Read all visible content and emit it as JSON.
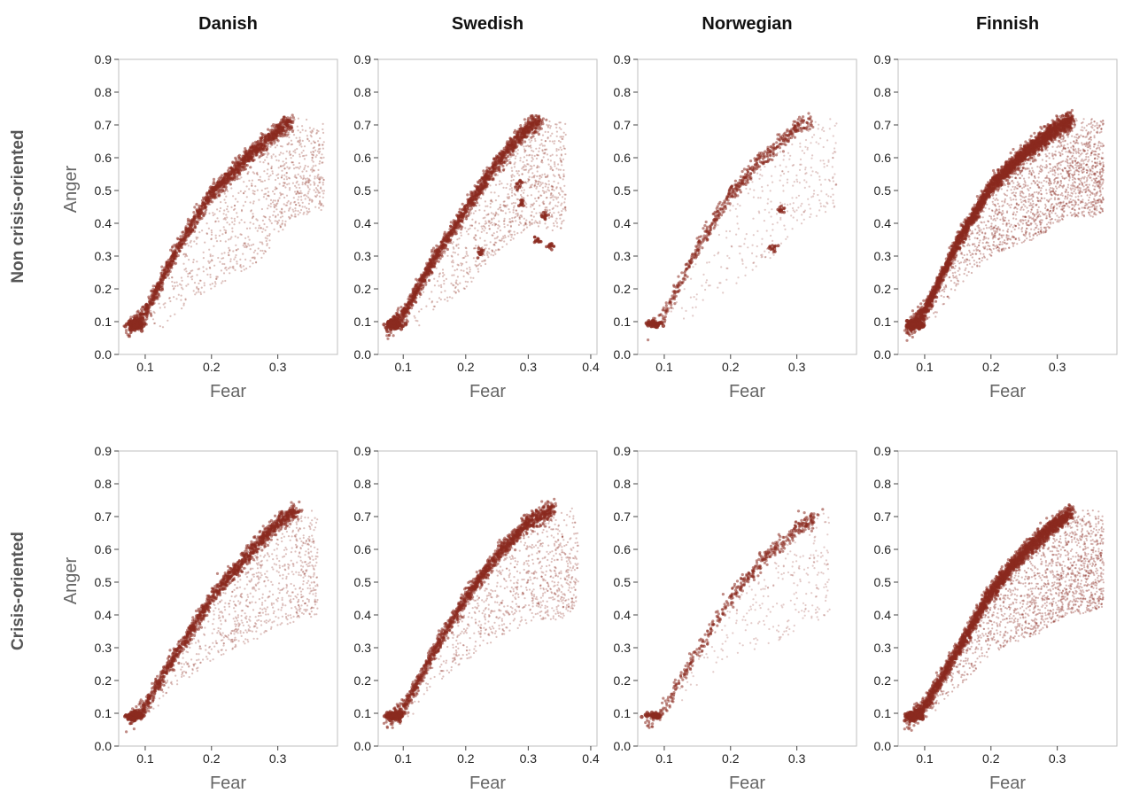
{
  "chart_data": {
    "type": "scatter",
    "columns": [
      "Danish",
      "Swedish",
      "Norwegian",
      "Finnish"
    ],
    "rows": [
      "Non crisis-oriented",
      "Crisis-oriented"
    ],
    "xlabel": "Fear",
    "ylabel": "Anger",
    "ylim": [
      0,
      0.9
    ],
    "yticks": [
      0.0,
      0.1,
      0.2,
      0.3,
      0.4,
      0.5,
      0.6,
      0.7,
      0.8,
      0.9
    ],
    "ytick_labels": [
      "0.0",
      "0.1",
      "0.2",
      "0.3",
      "0.4",
      "0.5",
      "0.6",
      "0.7",
      "0.8",
      "0.9"
    ],
    "color": "#8b2a1f",
    "panels": [
      {
        "row": 0,
        "col": 0,
        "language": "Danish",
        "row_label": "Non crisis-oriented",
        "xlim": [
          0.06,
          0.39
        ],
        "xticks": [
          0.1,
          0.2,
          0.3
        ],
        "xtick_labels": [
          "0.1",
          "0.2",
          "0.3"
        ],
        "show_ylabel": true,
        "density": 1.0,
        "ridge": [
          [
            0.075,
            0.085
          ],
          [
            0.1,
            0.135
          ],
          [
            0.15,
            0.335
          ],
          [
            0.2,
            0.5
          ],
          [
            0.25,
            0.6
          ],
          [
            0.3,
            0.69
          ],
          [
            0.32,
            0.72
          ]
        ],
        "spread_max": [
          [
            0.13,
            0.17
          ],
          [
            0.2,
            0.3
          ],
          [
            0.27,
            0.36
          ],
          [
            0.33,
            0.3
          ],
          [
            0.37,
            0.28
          ]
        ],
        "clusters": []
      },
      {
        "row": 0,
        "col": 1,
        "language": "Swedish",
        "row_label": "Non crisis-oriented",
        "xlim": [
          0.06,
          0.41
        ],
        "xticks": [
          0.1,
          0.2,
          0.3,
          0.4
        ],
        "xtick_labels": [
          "0.1",
          "0.2",
          "0.3",
          "0.4"
        ],
        "show_ylabel": false,
        "density": 1.0,
        "ridge": [
          [
            0.075,
            0.085
          ],
          [
            0.1,
            0.13
          ],
          [
            0.15,
            0.3
          ],
          [
            0.2,
            0.45
          ],
          [
            0.25,
            0.59
          ],
          [
            0.3,
            0.7
          ],
          [
            0.32,
            0.72
          ]
        ],
        "spread_max": [
          [
            0.13,
            0.15
          ],
          [
            0.2,
            0.25
          ],
          [
            0.28,
            0.3
          ],
          [
            0.35,
            0.35
          ],
          [
            0.36,
            0.3
          ]
        ],
        "clusters": [
          [
            0.285,
            0.52
          ],
          [
            0.325,
            0.42
          ],
          [
            0.335,
            0.33
          ],
          [
            0.315,
            0.35
          ],
          [
            0.225,
            0.31
          ],
          [
            0.29,
            0.46
          ]
        ]
      },
      {
        "row": 0,
        "col": 2,
        "language": "Norwegian",
        "row_label": "Non crisis-oriented",
        "xlim": [
          0.06,
          0.39
        ],
        "xticks": [
          0.1,
          0.2,
          0.3
        ],
        "xtick_labels": [
          "0.1",
          "0.2",
          "0.3"
        ],
        "show_ylabel": false,
        "density": 0.35,
        "ridge": [
          [
            0.075,
            0.085
          ],
          [
            0.1,
            0.13
          ],
          [
            0.15,
            0.33
          ],
          [
            0.2,
            0.5
          ],
          [
            0.25,
            0.61
          ],
          [
            0.3,
            0.7
          ],
          [
            0.32,
            0.72
          ]
        ],
        "spread_max": [
          [
            0.13,
            0.16
          ],
          [
            0.2,
            0.3
          ],
          [
            0.27,
            0.34
          ],
          [
            0.33,
            0.3
          ],
          [
            0.36,
            0.29
          ]
        ],
        "clusters": [
          [
            0.265,
            0.325
          ],
          [
            0.275,
            0.44
          ]
        ]
      },
      {
        "row": 0,
        "col": 3,
        "language": "Finnish",
        "row_label": "Non crisis-oriented",
        "xlim": [
          0.06,
          0.39
        ],
        "xticks": [
          0.1,
          0.2,
          0.3
        ],
        "xtick_labels": [
          "0.1",
          "0.2",
          "0.3"
        ],
        "show_ylabel": false,
        "density": 1.9,
        "ridge": [
          [
            0.075,
            0.085
          ],
          [
            0.1,
            0.14
          ],
          [
            0.15,
            0.35
          ],
          [
            0.2,
            0.52
          ],
          [
            0.25,
            0.62
          ],
          [
            0.3,
            0.7
          ],
          [
            0.32,
            0.72
          ]
        ],
        "spread_max": [
          [
            0.12,
            0.1
          ],
          [
            0.2,
            0.22
          ],
          [
            0.27,
            0.3
          ],
          [
            0.33,
            0.3
          ],
          [
            0.37,
            0.3
          ]
        ],
        "clusters": []
      },
      {
        "row": 1,
        "col": 0,
        "language": "Danish",
        "row_label": "Crisis-oriented",
        "xlim": [
          0.06,
          0.39
        ],
        "xticks": [
          0.1,
          0.2,
          0.3
        ],
        "xtick_labels": [
          "0.1",
          "0.2",
          "0.3"
        ],
        "show_ylabel": true,
        "density": 0.9,
        "ridge": [
          [
            0.075,
            0.085
          ],
          [
            0.1,
            0.13
          ],
          [
            0.15,
            0.3
          ],
          [
            0.2,
            0.46
          ],
          [
            0.25,
            0.58
          ],
          [
            0.3,
            0.69
          ],
          [
            0.33,
            0.73
          ]
        ],
        "spread_max": [
          [
            0.13,
            0.08
          ],
          [
            0.2,
            0.2
          ],
          [
            0.27,
            0.3
          ],
          [
            0.33,
            0.35
          ],
          [
            0.36,
            0.33
          ]
        ],
        "clusters": []
      },
      {
        "row": 1,
        "col": 1,
        "language": "Swedish",
        "row_label": "Crisis-oriented",
        "xlim": [
          0.06,
          0.41
        ],
        "xticks": [
          0.1,
          0.2,
          0.3,
          0.4
        ],
        "xtick_labels": [
          "0.1",
          "0.2",
          "0.3",
          "0.4"
        ],
        "show_ylabel": false,
        "density": 0.95,
        "ridge": [
          [
            0.075,
            0.085
          ],
          [
            0.1,
            0.12
          ],
          [
            0.15,
            0.3
          ],
          [
            0.2,
            0.46
          ],
          [
            0.25,
            0.59
          ],
          [
            0.3,
            0.69
          ],
          [
            0.34,
            0.73
          ]
        ],
        "spread_max": [
          [
            0.13,
            0.08
          ],
          [
            0.2,
            0.2
          ],
          [
            0.28,
            0.3
          ],
          [
            0.35,
            0.35
          ],
          [
            0.38,
            0.3
          ]
        ],
        "clusters": []
      },
      {
        "row": 1,
        "col": 2,
        "language": "Norwegian",
        "row_label": "Crisis-oriented",
        "xlim": [
          0.06,
          0.39
        ],
        "xticks": [
          0.1,
          0.2,
          0.3
        ],
        "xtick_labels": [
          "0.1",
          "0.2",
          "0.3"
        ],
        "show_ylabel": false,
        "density": 0.3,
        "ridge": [
          [
            0.075,
            0.085
          ],
          [
            0.1,
            0.12
          ],
          [
            0.15,
            0.3
          ],
          [
            0.2,
            0.46
          ],
          [
            0.25,
            0.58
          ],
          [
            0.3,
            0.67
          ],
          [
            0.33,
            0.71
          ]
        ],
        "spread_max": [
          [
            0.13,
            0.08
          ],
          [
            0.2,
            0.2
          ],
          [
            0.27,
            0.3
          ],
          [
            0.32,
            0.33
          ],
          [
            0.35,
            0.32
          ]
        ],
        "clusters": []
      },
      {
        "row": 1,
        "col": 3,
        "language": "Finnish",
        "row_label": "Crisis-oriented",
        "xlim": [
          0.06,
          0.39
        ],
        "xticks": [
          0.1,
          0.2,
          0.3
        ],
        "xtick_labels": [
          "0.1",
          "0.2",
          "0.3"
        ],
        "show_ylabel": false,
        "density": 1.7,
        "ridge": [
          [
            0.075,
            0.085
          ],
          [
            0.1,
            0.13
          ],
          [
            0.15,
            0.3
          ],
          [
            0.2,
            0.48
          ],
          [
            0.25,
            0.6
          ],
          [
            0.3,
            0.69
          ],
          [
            0.32,
            0.72
          ]
        ],
        "spread_max": [
          [
            0.12,
            0.08
          ],
          [
            0.2,
            0.2
          ],
          [
            0.27,
            0.3
          ],
          [
            0.33,
            0.32
          ],
          [
            0.37,
            0.3
          ]
        ],
        "clusters": []
      }
    ]
  }
}
